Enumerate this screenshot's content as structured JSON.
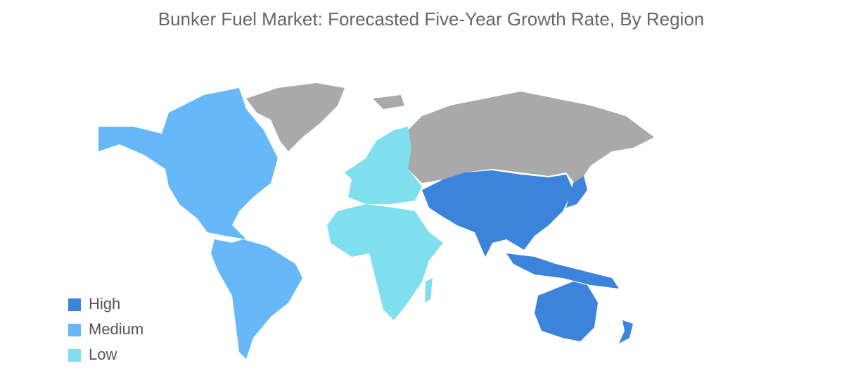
{
  "title": "Bunker Fuel Market: Forecasted Five-Year Growth Rate, By Region",
  "legend": [
    {
      "label": "High",
      "color": "#3c83dc"
    },
    {
      "label": "Medium",
      "color": "#66b8f9"
    },
    {
      "label": "Low",
      "color": "#80dfef"
    }
  ]
}
